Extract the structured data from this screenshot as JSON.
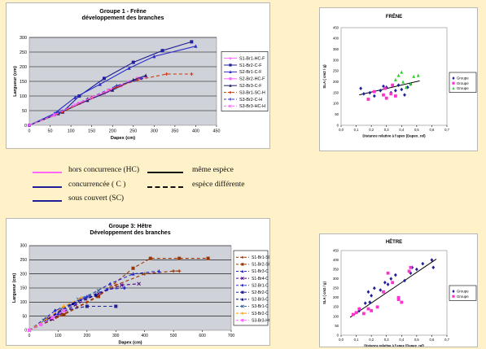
{
  "chart_data": [
    {
      "type": "line",
      "title": "Groupe 1 - Frêne",
      "subtitle": "développement des branches",
      "xlabel": "Dapex (cm)",
      "ylabel": "Largueur (cm)",
      "xlim": [
        0,
        450
      ],
      "ylim": [
        0,
        300
      ],
      "xticks": [
        0,
        50,
        100,
        150,
        200,
        250,
        300,
        350,
        400,
        450
      ],
      "yticks": [
        0,
        50,
        100,
        150,
        200,
        250,
        300
      ],
      "grid": "horizontal",
      "legend": "right",
      "series": [
        {
          "name": "S1-Br1-HC-F",
          "color": "#ff66ff",
          "dash": "",
          "marker": "plus",
          "points": [
            [
              0,
              0
            ],
            [
              70,
              40
            ],
            [
              130,
              80
            ],
            [
              200,
              125
            ],
            [
              240,
              150
            ],
            [
              280,
              165
            ]
          ]
        },
        {
          "name": "S1-Br2-C-F",
          "color": "#1f1f99",
          "dash": "",
          "marker": "square",
          "points": [
            [
              0,
              0
            ],
            [
              80,
              45
            ],
            [
              120,
              100
            ],
            [
              180,
              160
            ],
            [
              250,
              215
            ],
            [
              320,
              255
            ],
            [
              390,
              285
            ]
          ]
        },
        {
          "name": "S2-Br1-C-F",
          "color": "#2a2acc",
          "dash": "",
          "marker": "triangle",
          "points": [
            [
              0,
              0
            ],
            [
              60,
              40
            ],
            [
              110,
              95
            ],
            [
              170,
              140
            ],
            [
              240,
              195
            ],
            [
              300,
              235
            ],
            [
              400,
              270
            ]
          ]
        },
        {
          "name": "S2-Br2-HC-F",
          "color": "#ff66ff",
          "dash": "",
          "marker": "square",
          "points": [
            [
              0,
              0
            ],
            [
              60,
              35
            ],
            [
              120,
              75
            ],
            [
              180,
              110
            ],
            [
              220,
              135
            ],
            [
              260,
              160
            ]
          ]
        },
        {
          "name": "S2-Br3-C-F",
          "color": "#1f1f66",
          "dash": "",
          "marker": "triangle",
          "points": [
            [
              0,
              0
            ],
            [
              70,
              40
            ],
            [
              140,
              85
            ],
            [
              200,
              120
            ],
            [
              250,
              155
            ],
            [
              280,
              170
            ]
          ]
        },
        {
          "name": "S3-Br1-SC-H",
          "color": "#cc3300",
          "dash": "4,3",
          "marker": "plus",
          "points": [
            [
              0,
              0
            ],
            [
              80,
              45
            ],
            [
              150,
              95
            ],
            [
              210,
              130
            ],
            [
              260,
              155
            ],
            [
              330,
              175
            ],
            [
              390,
              175
            ]
          ]
        },
        {
          "name": "S3-Br2-C-H",
          "color": "#3333cc",
          "dash": "4,3",
          "marker": "plus",
          "points": [
            [
              0,
              0
            ],
            [
              70,
              45
            ],
            [
              140,
              90
            ],
            [
              210,
              135
            ],
            [
              270,
              160
            ]
          ]
        },
        {
          "name": "S3-Br3-HC-H",
          "color": "#ff66ff",
          "dash": "4,3",
          "marker": "x",
          "points": [
            [
              0,
              0
            ],
            [
              60,
              35
            ],
            [
              110,
              70
            ],
            [
              150,
              95
            ],
            [
              190,
              120
            ]
          ]
        }
      ]
    },
    {
      "type": "line",
      "title": "Groupe 3: Hêtre",
      "subtitle": "Développement des branches",
      "xlabel": "Dapex (cm)",
      "ylabel": "Largueur (cm)",
      "xlim": [
        0,
        700
      ],
      "ylim": [
        0,
        300
      ],
      "xticks": [
        0,
        100,
        200,
        300,
        400,
        500,
        600,
        700
      ],
      "yticks": [
        0,
        50,
        100,
        150,
        200,
        250,
        300
      ],
      "grid": "horizontal",
      "legend": "right",
      "series": [
        {
          "name": "S1-Br1-SC",
          "color": "#993300",
          "dash": "4,3",
          "marker": "plus",
          "points": [
            [
              0,
              0
            ],
            [
              100,
              50
            ],
            [
              200,
              100
            ],
            [
              300,
              160
            ],
            [
              400,
              200
            ],
            [
              500,
              210
            ],
            [
              520,
              210
            ]
          ]
        },
        {
          "name": "S1-Br2-SC",
          "color": "#993300",
          "dash": "4,3",
          "marker": "square",
          "points": [
            [
              0,
              0
            ],
            [
              120,
              55
            ],
            [
              240,
              120
            ],
            [
              360,
              220
            ],
            [
              420,
              255
            ],
            [
              520,
              255
            ],
            [
              620,
              255
            ]
          ]
        },
        {
          "name": "S1-Br3-C",
          "color": "#2a2acc",
          "dash": "4,3",
          "marker": "triangle",
          "points": [
            [
              0,
              0
            ],
            [
              100,
              60
            ],
            [
              200,
              120
            ],
            [
              280,
              165
            ],
            [
              360,
              200
            ],
            [
              450,
              210
            ]
          ]
        },
        {
          "name": "S1-Br4-C",
          "color": "#4b0082",
          "dash": "4,3",
          "marker": "x",
          "points": [
            [
              0,
              0
            ],
            [
              80,
              40
            ],
            [
              160,
              90
            ],
            [
              240,
              130
            ],
            [
              320,
              160
            ],
            [
              380,
              165
            ]
          ]
        },
        {
          "name": "S2-Br1-C",
          "color": "#2a2acc",
          "dash": "4,3",
          "marker": "diamond",
          "points": [
            [
              0,
              0
            ],
            [
              90,
              70
            ],
            [
              180,
              110
            ],
            [
              270,
              145
            ],
            [
              330,
              150
            ]
          ]
        },
        {
          "name": "S2-Br2-C",
          "color": "#1f1f99",
          "dash": "4,3",
          "marker": "square",
          "points": [
            [
              0,
              0
            ],
            [
              60,
              40
            ],
            [
              120,
              70
            ],
            [
              200,
              85
            ],
            [
              300,
              85
            ]
          ]
        },
        {
          "name": "S2-Br3-C",
          "color": "#000080",
          "dash": "4,3",
          "marker": "triangle",
          "points": [
            [
              0,
              0
            ],
            [
              70,
              45
            ],
            [
              150,
              95
            ],
            [
              230,
              125
            ]
          ]
        },
        {
          "name": "S3-Br1-C",
          "color": "#336699",
          "dash": "4,3",
          "marker": "x",
          "points": [
            [
              0,
              0
            ],
            [
              50,
              35
            ],
            [
              110,
              75
            ],
            [
              170,
              110
            ],
            [
              240,
              140
            ]
          ]
        },
        {
          "name": "S3-Br2-C",
          "color": "#ff9900",
          "dash": "4,3",
          "marker": "plus",
          "points": [
            [
              0,
              0
            ],
            [
              60,
              40
            ],
            [
              120,
              85
            ],
            [
              180,
              115
            ]
          ]
        },
        {
          "name": "S3-Br3-HC",
          "color": "#ff66ff",
          "dash": "4,3",
          "marker": "square",
          "points": [
            [
              0,
              0
            ],
            [
              40,
              20
            ],
            [
              80,
              45
            ],
            [
              120,
              70
            ]
          ]
        }
      ]
    },
    {
      "type": "scatter",
      "title": "FRÊNE",
      "xlabel": "Distance relative à l'apex (Dapex_rel)",
      "ylabel": "SLA ( cm2 / g)",
      "xlim": [
        0,
        0.7
      ],
      "ylim": [
        0,
        450
      ],
      "xticks": [
        0.0,
        0.1,
        0.2,
        0.3,
        0.4,
        0.5,
        0.6,
        0.7
      ],
      "xtick_labels": [
        "0,0",
        "0,1",
        "0,2",
        "0,3",
        "0,4",
        "0,5",
        "0,6",
        "0,7"
      ],
      "yticks": [
        0,
        50,
        100,
        150,
        200,
        250,
        300,
        350,
        400,
        450
      ],
      "legend": "right",
      "trendline": [
        [
          0.12,
          140
        ],
        [
          0.52,
          205
        ]
      ],
      "series": [
        {
          "name": "Groupe",
          "color": "#1f1f99",
          "marker": "diamond",
          "points": [
            [
              0.15,
              145
            ],
            [
              0.19,
              150
            ],
            [
              0.22,
              135
            ],
            [
              0.26,
              160
            ],
            [
              0.28,
              180
            ],
            [
              0.3,
              175
            ],
            [
              0.33,
              150
            ],
            [
              0.36,
              160
            ],
            [
              0.38,
              185
            ],
            [
              0.4,
              165
            ],
            [
              0.42,
              140
            ],
            [
              0.44,
              175
            ],
            [
              0.46,
              190
            ],
            [
              0.13,
              170
            ]
          ]
        },
        {
          "name": "Groupe",
          "color": "#ff33cc",
          "marker": "square",
          "points": [
            [
              0.18,
              120
            ],
            [
              0.22,
              155
            ],
            [
              0.28,
              140
            ],
            [
              0.29,
              170
            ],
            [
              0.3,
              125
            ],
            [
              0.33,
              145
            ],
            [
              0.34,
              185
            ],
            [
              0.36,
              135
            ]
          ]
        },
        {
          "name": "Groupe",
          "color": "#33cc33",
          "marker": "triangle",
          "points": [
            [
              0.36,
              210
            ],
            [
              0.4,
              245
            ],
            [
              0.41,
              200
            ],
            [
              0.43,
              175
            ],
            [
              0.46,
              190
            ],
            [
              0.48,
              225
            ],
            [
              0.51,
              230
            ],
            [
              0.38,
              230
            ]
          ]
        }
      ]
    },
    {
      "type": "scatter",
      "title": "HÊTRE",
      "xlabel": "Distance relative à l'apex (Dapex_rel)",
      "ylabel": "SLA ( cm2 / g)",
      "xlim": [
        0,
        0.7
      ],
      "ylim": [
        0,
        450
      ],
      "xticks": [
        0.0,
        0.1,
        0.2,
        0.3,
        0.4,
        0.5,
        0.6,
        0.7
      ],
      "xtick_labels": [
        "0,0",
        "0,1",
        "0,2",
        "0,3",
        "0,4",
        "0,5",
        "0,6",
        "0,7"
      ],
      "yticks": [
        0,
        50,
        100,
        150,
        200,
        250,
        300,
        350,
        400,
        450
      ],
      "legend": "right",
      "trendline": [
        [
          0.06,
          95
        ],
        [
          0.63,
          405
        ]
      ],
      "series": [
        {
          "name": "Groupe",
          "color": "#1f1f99",
          "marker": "diamond",
          "points": [
            [
              0.12,
              130
            ],
            [
              0.16,
              170
            ],
            [
              0.18,
              230
            ],
            [
              0.2,
              210
            ],
            [
              0.22,
              250
            ],
            [
              0.26,
              240
            ],
            [
              0.29,
              280
            ],
            [
              0.31,
              270
            ],
            [
              0.33,
              300
            ],
            [
              0.36,
              320
            ],
            [
              0.42,
              290
            ],
            [
              0.46,
              330
            ],
            [
              0.5,
              350
            ],
            [
              0.54,
              380
            ],
            [
              0.6,
              400
            ],
            [
              0.61,
              360
            ],
            [
              0.47,
              360
            ],
            [
              0.19,
              175
            ]
          ]
        },
        {
          "name": "Groupe",
          "color": "#ff33cc",
          "marker": "square",
          "points": [
            [
              0.08,
              110
            ],
            [
              0.1,
              120
            ],
            [
              0.12,
              140
            ],
            [
              0.15,
              115
            ],
            [
              0.18,
              140
            ],
            [
              0.2,
              130
            ],
            [
              0.24,
              150
            ],
            [
              0.28,
              230
            ],
            [
              0.31,
              330
            ],
            [
              0.34,
              280
            ],
            [
              0.38,
              200
            ],
            [
              0.4,
              175
            ],
            [
              0.45,
              340
            ],
            [
              0.46,
              360
            ],
            [
              0.38,
              190
            ]
          ]
        }
      ]
    }
  ],
  "key": {
    "items": [
      {
        "label": "hors concurrence (HC)",
        "color": "#ff66ff",
        "style": "solid"
      },
      {
        "label": "concurrencée ( C )",
        "color": "#1f1f99",
        "style": "solid"
      },
      {
        "label": "sous couvert (SC)",
        "color": "#1f1f99",
        "style": "solid"
      },
      {
        "label": "même espèce",
        "color": "#111111",
        "style": "solid"
      },
      {
        "label": "espèce différente",
        "color": "#111111",
        "style": "dashed"
      }
    ]
  }
}
